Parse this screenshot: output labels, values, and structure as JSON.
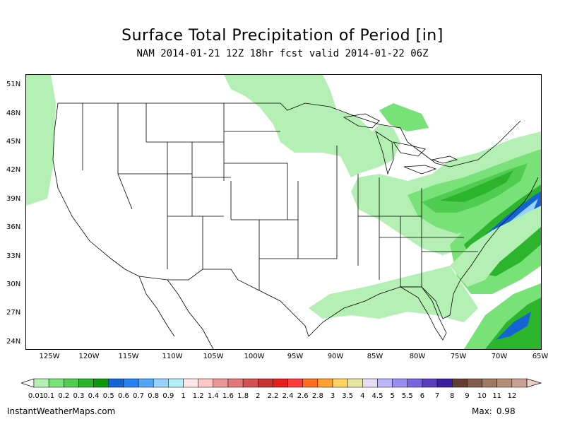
{
  "title": "Surface Total Precipitation of Period [in]",
  "subtitle": "NAM 2014-01-21 12Z 18hr fcst valid 2014-01-22 06Z",
  "map": {
    "lat_labels": [
      "51N",
      "48N",
      "45N",
      "42N",
      "39N",
      "36N",
      "33N",
      "30N",
      "27N",
      "24N"
    ],
    "lat_values": [
      51,
      48,
      45,
      42,
      39,
      36,
      33,
      30,
      27,
      24
    ],
    "lon_labels": [
      "125W",
      "120W",
      "115W",
      "110W",
      "105W",
      "100W",
      "95W",
      "90W",
      "85W",
      "80W",
      "75W",
      "70W",
      "65W"
    ],
    "lon_values": [
      -125,
      -120,
      -115,
      -110,
      -105,
      -100,
      -95,
      -90,
      -85,
      -80,
      -75,
      -70,
      -65
    ],
    "lat_range": [
      22.8,
      51.6
    ],
    "lon_range": [
      -128,
      -65
    ]
  },
  "legend": {
    "labels": [
      "0.01",
      "0.1",
      "0.2",
      "0.3",
      "0.4",
      "0.5",
      "0.6",
      "0.7",
      "0.8",
      "0.9",
      "1",
      "1.2",
      "1.4",
      "1.6",
      "1.8",
      "2",
      "2.2",
      "2.4",
      "2.6",
      "2.8",
      "3",
      "3.5",
      "4",
      "4.5",
      "5",
      "5.5",
      "6",
      "7",
      "8",
      "9",
      "10",
      "11",
      "12"
    ],
    "colors": [
      "#b4f0b4",
      "#78e178",
      "#50cd50",
      "#2db42d",
      "#0f960f",
      "#1464d2",
      "#2882f0",
      "#50a5f5",
      "#96d2fa",
      "#b4f0fa",
      "#ffe6e6",
      "#ffc8c8",
      "#eb9696",
      "#e17878",
      "#d25050",
      "#c83232",
      "#e61e1e",
      "#fa3c3c",
      "#ff6e1e",
      "#ffa032",
      "#ffd264",
      "#e6e6a0",
      "#e6dcf5",
      "#beb4fa",
      "#9b8cf0",
      "#7864dc",
      "#5a3cbe",
      "#3c1ea0",
      "#643c32",
      "#825a4b",
      "#a07864",
      "#b48c78",
      "#c8a096"
    ]
  },
  "footer": {
    "site": "InstantWeatherMaps.com",
    "max_label": "Max:",
    "max_value": "0.98"
  },
  "precip_colors": {
    "light": "#b4f0b4",
    "light2": "#78e178",
    "mid": "#50cd50",
    "dark": "#2db42d",
    "darker": "#0f960f",
    "blue": "#1464d2",
    "blue2": "#2882f0",
    "paleblue": "#96d2fa"
  }
}
